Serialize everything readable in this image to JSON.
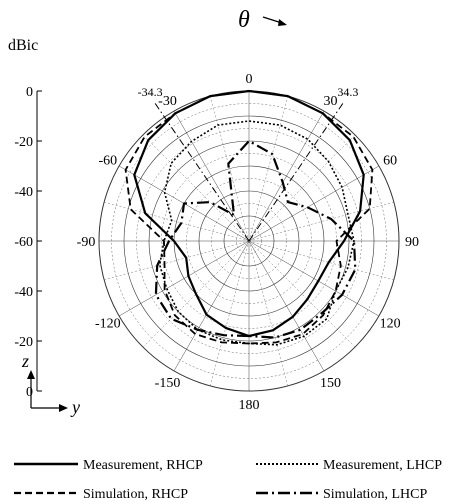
{
  "chart_data": {
    "type": "polar",
    "title": "",
    "angle_label": "θ",
    "radial_unit": "dBic",
    "radial_ticks": [
      "0",
      "-20",
      "-40",
      "-60",
      "-40",
      "-20",
      "0"
    ],
    "angle_ticks": [
      "0",
      "30",
      "60",
      "90",
      "120",
      "150",
      "180",
      "-150",
      "-120",
      "-90",
      "-60",
      "-30"
    ],
    "beam_marks": [
      "-34.3",
      "34.3"
    ],
    "beam_angles": [
      -34.3,
      34.3
    ],
    "rlim": [
      -60,
      0
    ],
    "grid": true,
    "legend_position": "bottom",
    "axis_labels": {
      "z": "z",
      "y": "y"
    },
    "series": [
      {
        "name": "Measurement, RHCP",
        "style": "solid",
        "theta": [
          -180,
          -165,
          -150,
          -135,
          -120,
          -105,
          -90,
          -75,
          -60,
          -45,
          -30,
          -15,
          0,
          15,
          30,
          45,
          60,
          75,
          90,
          105,
          120,
          135,
          150,
          165,
          180
        ],
        "r": [
          -22,
          -24,
          -26,
          -30,
          -32,
          -34,
          -30,
          -17,
          -7,
          -3,
          -1,
          0,
          0,
          0,
          -1,
          -3,
          -7,
          -14,
          -22,
          -27,
          -28,
          -27,
          -25,
          -23,
          -22
        ]
      },
      {
        "name": "Measurement, LHCP",
        "style": "dotted",
        "theta": [
          -180,
          -165,
          -150,
          -135,
          -120,
          -105,
          -90,
          -75,
          -60,
          -45,
          -30,
          -15,
          0,
          15,
          30,
          45,
          60,
          75,
          90,
          105,
          120,
          135,
          150,
          165,
          180
        ],
        "r": [
          -19,
          -19,
          -19,
          -20,
          -22,
          -23,
          -26,
          -28,
          -21,
          -16,
          -14,
          -12,
          -12,
          -12,
          -13,
          -15,
          -17,
          -19,
          -18,
          -19,
          -20,
          -16,
          -16,
          -17,
          -19
        ]
      },
      {
        "name": "Simulation, RHCP",
        "style": "dashed",
        "theta": [
          -180,
          -165,
          -150,
          -135,
          -120,
          -105,
          -90,
          -75,
          -60,
          -45,
          -30,
          -15,
          0,
          15,
          30,
          45,
          60,
          75,
          90,
          105,
          120,
          135,
          150,
          165,
          180
        ],
        "r": [
          -19,
          -18,
          -17,
          -18,
          -21,
          -25,
          -26,
          -11,
          -3,
          -1,
          -1,
          0,
          0,
          0,
          -1,
          -1,
          -3,
          -10,
          -25,
          -22,
          -20,
          -18,
          -17,
          -18,
          -19
        ]
      },
      {
        "name": "Simulation, LHCP",
        "style": "dashdot",
        "theta": [
          -180,
          -165,
          -150,
          -135,
          -120,
          -105,
          -90,
          -75,
          -60,
          -45,
          -30,
          -15,
          0,
          15,
          30,
          45,
          60,
          75,
          90,
          105,
          120,
          135,
          150,
          165,
          180
        ],
        "r": [
          -22,
          -21,
          -19,
          -16,
          -17,
          -22,
          -28,
          -32,
          -30,
          -38,
          -48,
          -28,
          -20,
          -24,
          -33,
          -38,
          -33,
          -26,
          -18,
          -16,
          -17,
          -19,
          -19,
          -20,
          -22
        ]
      }
    ]
  }
}
